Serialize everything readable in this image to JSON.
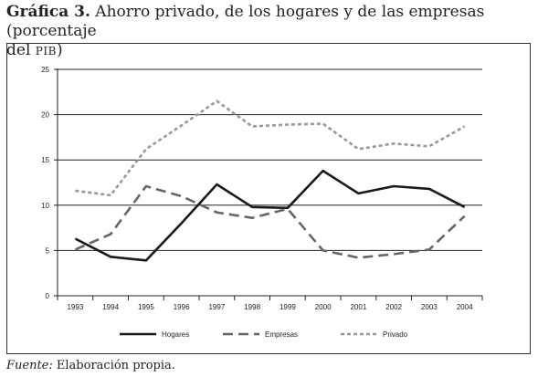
{
  "title": {
    "label": "Gráfica 3.",
    "text_line1": "Ahorro privado, de los hogares y de las empresas (porcentaje",
    "text_line2": "del",
    "text_sc": "PIB",
    "text_end": ")"
  },
  "source": {
    "label": "Fuente:",
    "text": "Elaboración propia."
  },
  "chart_data": {
    "type": "line",
    "x": [
      "1993",
      "1994",
      "1995",
      "1996",
      "1997",
      "1998",
      "1999",
      "2000",
      "2001",
      "2002",
      "2003",
      "2004"
    ],
    "ylim": [
      0,
      25
    ],
    "yticks": [
      "0",
      "5",
      "10",
      "15",
      "20",
      "25"
    ],
    "grid": true,
    "legend_position": "bottom",
    "series": [
      {
        "name": "Hogares",
        "style": "solid",
        "color": "#1a1a1a",
        "values": [
          6.3,
          4.3,
          3.9,
          8.0,
          12.3,
          9.8,
          9.7,
          13.8,
          11.3,
          12.1,
          11.8,
          9.8
        ]
      },
      {
        "name": "Empresas",
        "style": "dashed",
        "color": "#666666",
        "values": [
          5.1,
          6.8,
          12.1,
          11.0,
          9.2,
          8.6,
          9.6,
          5.0,
          4.2,
          4.6,
          5.1,
          8.8
        ]
      },
      {
        "name": "Privado",
        "style": "dotted",
        "color": "#999999",
        "values": [
          11.6,
          11.1,
          16.2,
          18.8,
          21.5,
          18.7,
          18.9,
          19.0,
          16.2,
          16.8,
          16.5,
          18.7
        ]
      }
    ]
  }
}
